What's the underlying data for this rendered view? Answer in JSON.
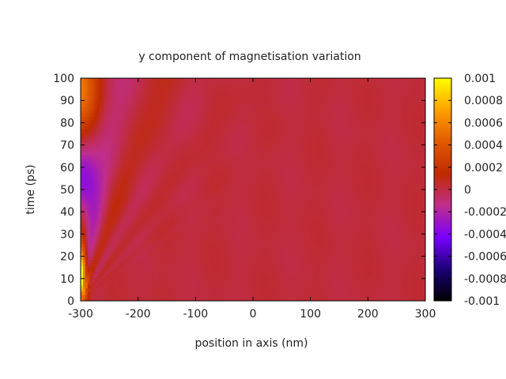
{
  "chart_data": {
    "type": "heatmap",
    "title": "y component of magnetisation variation",
    "xlabel": "position in axis (nm)",
    "ylabel": "time (ps)",
    "xlim": [
      -300,
      300
    ],
    "ylim": [
      0,
      100
    ],
    "x_ticks": [
      -300,
      -200,
      -100,
      0,
      100,
      200,
      300
    ],
    "x_tick_labels": [
      "-300",
      "-200",
      "-100",
      "0",
      "100",
      "200",
      "300"
    ],
    "y_ticks": [
      0,
      10,
      20,
      30,
      40,
      50,
      60,
      70,
      80,
      90,
      100
    ],
    "y_tick_labels": [
      "0",
      "10",
      "20",
      "30",
      "40",
      "50",
      "60",
      "70",
      "80",
      "90",
      "100"
    ],
    "colorbar": {
      "range": [
        -0.001,
        0.001
      ],
      "ticks": [
        0.001,
        0.0008,
        0.0006,
        0.0004,
        0.0002,
        0,
        -0.0002,
        -0.0004,
        -0.0006,
        -0.0008,
        -0.001
      ],
      "tick_labels": [
        "0.001",
        "0.0008",
        "0.0006",
        "0.0004",
        "0.0002",
        "0",
        "-0.0002",
        "-0.0004",
        "-0.0006",
        "-0.0008",
        "-0.001"
      ],
      "colormap": [
        "#000000",
        "#1c0078",
        "#7a00ff",
        "#c02e8a",
        "#bf2a00",
        "#e05a00",
        "#ffa000",
        "#ffff00"
      ]
    },
    "features": [
      {
        "description": "spin-wave fronts emanating from the left edge, speed decreasing with index",
        "x_origin": -300,
        "t_origin": 0
      },
      {
        "description": "negative lobe near left edge",
        "x": -300,
        "t_range": [
          35,
          75
        ],
        "value": -0.0006
      },
      {
        "description": "positive lobe near left edge",
        "x": -300,
        "t_range": [
          0,
          25
        ],
        "value": 0.0009
      },
      {
        "description": "positive lobe near left edge, late time",
        "x": -300,
        "t_range": [
          85,
          100
        ],
        "value": 0.0003
      }
    ],
    "grid": false
  }
}
